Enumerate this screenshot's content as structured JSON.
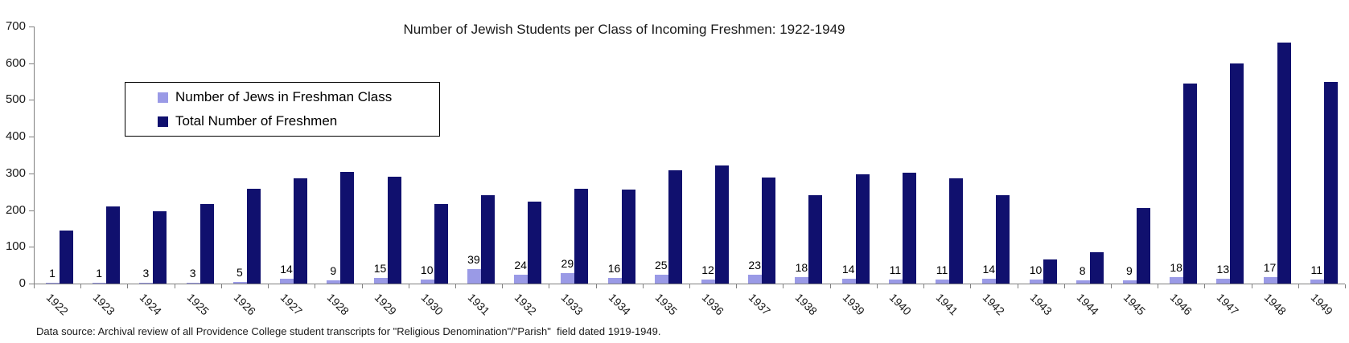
{
  "title": "Number of Jewish Students per Class of Incoming Freshmen: 1922-1949",
  "footer": "Data source: Archival review of all Providence College student transcripts for \"Religious Denomination\"/\"Parish\"  field dated 1919-1949.",
  "colors": {
    "jews_series": "#9A9AE6",
    "total_series": "#10106E",
    "axis": "#808080",
    "background": "#FFFFFF",
    "text": "#1A1A1A"
  },
  "legend": {
    "items": [
      {
        "label": "Number of Jews in Freshman Class",
        "color": "#9A9AE6"
      },
      {
        "label": "Total Number of Freshmen",
        "color": "#10106E"
      }
    ]
  },
  "chart_data": {
    "type": "bar",
    "title": "Number of Jewish Students per Class of Incoming Freshmen: 1922-1949",
    "categories": [
      "1922",
      "1923",
      "1924",
      "1925",
      "1926",
      "1927",
      "1928",
      "1929",
      "1930",
      "1931",
      "1932",
      "1933",
      "1934",
      "1935",
      "1936",
      "1937",
      "1938",
      "1939",
      "1940",
      "1941",
      "1942",
      "1943",
      "1944",
      "1945",
      "1946",
      "1947",
      "1948",
      "1949"
    ],
    "series": [
      {
        "name": "Number of Jews in Freshman Class",
        "color": "#9A9AE6",
        "data_labels_shown": true,
        "values": [
          1,
          1,
          3,
          3,
          5,
          14,
          9,
          15,
          10,
          39,
          24,
          29,
          16,
          25,
          12,
          23,
          18,
          14,
          11,
          11,
          14,
          10,
          8,
          9,
          18,
          13,
          17,
          11
        ]
      },
      {
        "name": "Total Number of Freshmen",
        "color": "#10106E",
        "data_labels_shown": false,
        "values": [
          145,
          209,
          196,
          217,
          259,
          287,
          305,
          291,
          217,
          240,
          223,
          258,
          255,
          309,
          322,
          289,
          240,
          297,
          302,
          286,
          240,
          65,
          85,
          206,
          545,
          600,
          656,
          548
        ]
      }
    ],
    "xlabel": "",
    "ylabel": "",
    "ylim": [
      0,
      700
    ],
    "yticks": [
      0,
      100,
      200,
      300,
      400,
      500,
      600,
      700
    ],
    "grid": false,
    "legend_position": "upper-left-inside",
    "x_tick_label_rotation_deg": 45
  }
}
